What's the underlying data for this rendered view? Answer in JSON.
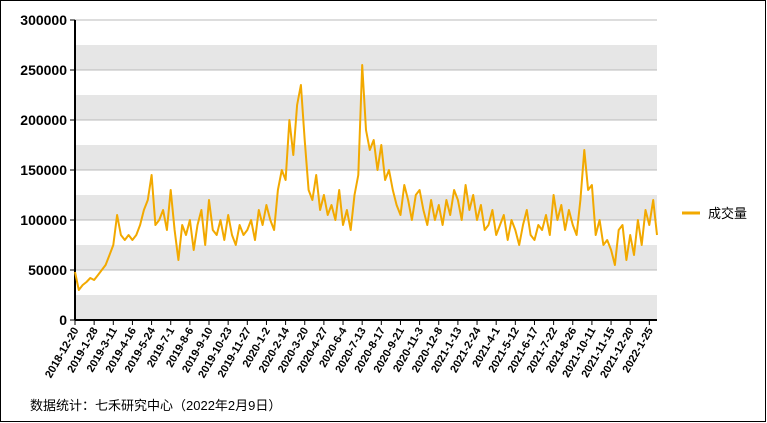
{
  "chart_data": {
    "type": "line",
    "series": [
      {
        "name": "成交量",
        "color": "#f2a900",
        "values": [
          48000,
          30000,
          35000,
          38000,
          42000,
          40000,
          45000,
          50000,
          55000,
          65000,
          75000,
          105000,
          85000,
          80000,
          85000,
          80000,
          85000,
          95000,
          110000,
          120000,
          145000,
          95000,
          100000,
          110000,
          90000,
          130000,
          90000,
          60000,
          95000,
          85000,
          100000,
          70000,
          95000,
          110000,
          75000,
          120000,
          90000,
          85000,
          100000,
          80000,
          105000,
          85000,
          75000,
          95000,
          85000,
          90000,
          100000,
          80000,
          110000,
          95000,
          115000,
          100000,
          90000,
          130000,
          150000,
          140000,
          200000,
          165000,
          215000,
          235000,
          180000,
          130000,
          120000,
          145000,
          110000,
          125000,
          105000,
          115000,
          100000,
          130000,
          95000,
          110000,
          90000,
          125000,
          145000,
          255000,
          190000,
          170000,
          180000,
          150000,
          175000,
          140000,
          150000,
          130000,
          115000,
          105000,
          135000,
          120000,
          100000,
          125000,
          130000,
          110000,
          95000,
          120000,
          100000,
          115000,
          95000,
          120000,
          105000,
          130000,
          120000,
          100000,
          135000,
          110000,
          125000,
          100000,
          115000,
          90000,
          95000,
          110000,
          85000,
          95000,
          105000,
          80000,
          100000,
          90000,
          75000,
          95000,
          110000,
          85000,
          80000,
          95000,
          90000,
          105000,
          85000,
          125000,
          100000,
          115000,
          90000,
          110000,
          95000,
          85000,
          120000,
          170000,
          130000,
          135000,
          85000,
          100000,
          75000,
          80000,
          70000,
          55000,
          90000,
          95000,
          60000,
          85000,
          65000,
          100000,
          75000,
          110000,
          95000,
          120000,
          85000
        ]
      }
    ],
    "categories": [
      "2018-12-20",
      null,
      null,
      null,
      null,
      "2019-1-28",
      null,
      null,
      null,
      null,
      "2019-3-11",
      null,
      null,
      null,
      null,
      "2019-4-16",
      null,
      null,
      null,
      null,
      "2019-5-24",
      null,
      null,
      null,
      null,
      "2019-7-1",
      null,
      null,
      null,
      null,
      "2019-8-6",
      null,
      null,
      null,
      null,
      "2019-9-10",
      null,
      null,
      null,
      null,
      "2019-10-23",
      null,
      null,
      null,
      null,
      "2019-11-27",
      null,
      null,
      null,
      null,
      "2020-1-2",
      null,
      null,
      null,
      null,
      "2020-2-14",
      null,
      null,
      null,
      null,
      "2020-3-20",
      null,
      null,
      null,
      null,
      "2020-4-27",
      null,
      null,
      null,
      null,
      "2020-6-4",
      null,
      null,
      null,
      null,
      "2020-7-13",
      null,
      null,
      null,
      null,
      "2020-8-17",
      null,
      null,
      null,
      null,
      "2020-9-21",
      null,
      null,
      null,
      null,
      "2020-11-3",
      null,
      null,
      null,
      null,
      "2020-12-8",
      null,
      null,
      null,
      null,
      "2021-1-13",
      null,
      null,
      null,
      null,
      "2021-2-24",
      null,
      null,
      null,
      null,
      "2021-4-1",
      null,
      null,
      null,
      null,
      "2021-5-12",
      null,
      null,
      null,
      null,
      "2021-6-17",
      null,
      null,
      null,
      null,
      "2021-7-22",
      null,
      null,
      null,
      null,
      "2021-8-26",
      null,
      null,
      null,
      null,
      "2021-10-11",
      null,
      null,
      null,
      null,
      "2021-11-15",
      null,
      null,
      null,
      null,
      "2021-12-20",
      null,
      null,
      null,
      null,
      "2022-1-25",
      null,
      null
    ],
    "ylim": [
      0,
      300000
    ],
    "yticks": [
      0,
      50000,
      100000,
      150000,
      200000,
      250000,
      300000
    ],
    "grid": true,
    "legend": "right",
    "source": "数据统计：七禾研究中心（2022年2月9日）"
  }
}
